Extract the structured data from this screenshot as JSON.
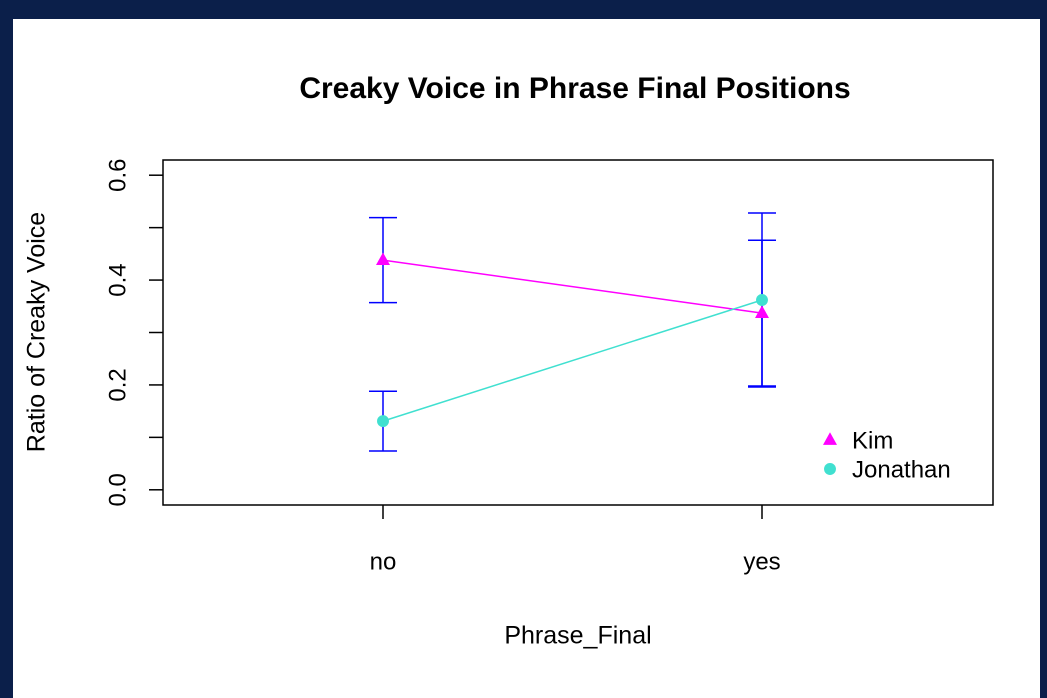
{
  "chart_data": {
    "type": "line",
    "title": "Creaky Voice in Phrase Final Positions",
    "xlabel": "Phrase_Final",
    "ylabel": "Ratio of Creaky Voice",
    "categories": [
      "no",
      "yes"
    ],
    "series": [
      {
        "name": "Kim",
        "color": "#ff00ff",
        "marker": "triangle",
        "values": [
          0.438,
          0.337
        ],
        "errors": [
          0.081,
          0.139
        ]
      },
      {
        "name": "Jonathan",
        "color": "#40e0d0",
        "marker": "circle",
        "values": [
          0.131,
          0.362
        ],
        "errors": [
          0.057,
          0.166
        ]
      }
    ],
    "error_color": "#0000ff",
    "ylim": [
      -0.029,
      0.629
    ],
    "yticks": [
      {
        "value": 0,
        "label": "0.0"
      },
      {
        "value": 0.2,
        "label": "0.2"
      },
      {
        "value": 0.4,
        "label": "0.4"
      },
      {
        "value": 0.6,
        "label": "0.6"
      }
    ],
    "yticks_minor": [
      0.1,
      0.3,
      0.5
    ],
    "legend": "lower right"
  }
}
